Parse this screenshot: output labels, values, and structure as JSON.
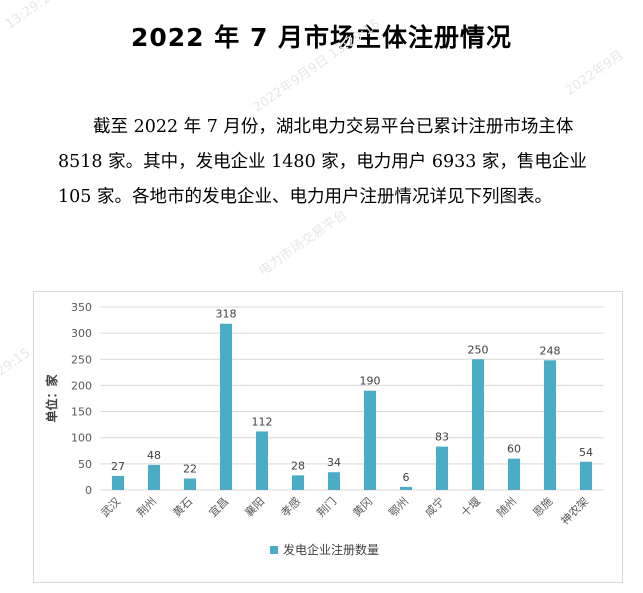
{
  "document": {
    "title": "2022 年 7 月市场主体注册情况",
    "paragraph": "截至 2022 年 7 月份，湖北电力交易平台已累计注册市场主体 8518 家。其中，发电企业 1480 家，电力用户 6933 家，售电企业 105 家。各地市的发电企业、电力用户注册情况详见下列图表。"
  },
  "watermarks": [
    "2022年9月9日 13:29:15",
    "电力市场交易平台",
    "2022年9月",
    "29:15",
    "13:29:15"
  ],
  "chart_data": {
    "type": "bar",
    "categories": [
      "武汉",
      "荆州",
      "黄石",
      "宜昌",
      "襄阳",
      "孝感",
      "荆门",
      "黄冈",
      "鄂州",
      "咸宁",
      "十堰",
      "随州",
      "恩施",
      "神农架"
    ],
    "series": [
      {
        "name": "发电企业注册数量",
        "values": [
          27,
          48,
          22,
          318,
          112,
          28,
          34,
          190,
          6,
          83,
          250,
          60,
          248,
          54
        ],
        "color": "#4bacc6"
      }
    ],
    "ylabel": "单位：家",
    "ylim": [
      0,
      350
    ],
    "yticks": [
      0,
      50,
      100,
      150,
      200,
      250,
      300,
      350
    ],
    "grid": true,
    "legend": "bottom",
    "data_labels": true
  }
}
